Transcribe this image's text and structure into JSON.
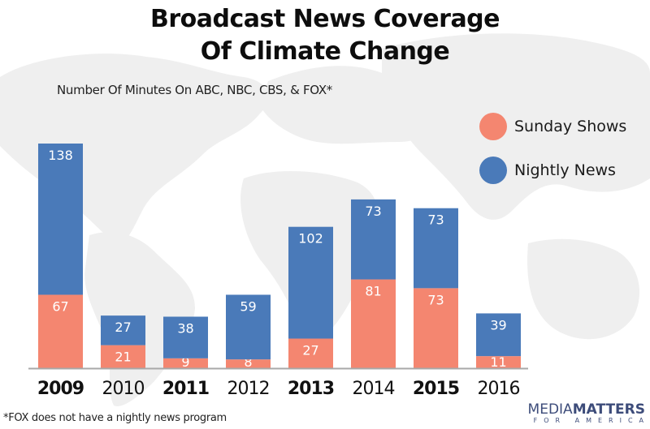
{
  "header": {
    "title_line1": "Broadcast News Coverage",
    "title_line2": "Of Climate Change",
    "subtitle": "Number Of Minutes On ABC, NBC, CBS, & FOX*"
  },
  "legend": [
    {
      "label": "Sunday Shows",
      "color": "#f48670"
    },
    {
      "label": "Nightly News",
      "color": "#4a7ab9"
    }
  ],
  "footnote": "*FOX does not have a nightly news program",
  "logo": {
    "part1": "MEDIA",
    "part2": "MATTERS",
    "part3": "FOR AMERICA"
  },
  "chart_data": {
    "type": "bar",
    "stacked": true,
    "title": "Broadcast News Coverage Of Climate Change",
    "subtitle": "Number Of Minutes On ABC, NBC, CBS, & FOX*",
    "categories": [
      "2009",
      "2010",
      "2011",
      "2012",
      "2013",
      "2014",
      "2015",
      "2016"
    ],
    "bold_categories": [
      "2009",
      "2011",
      "2013",
      "2015"
    ],
    "series": [
      {
        "name": "Sunday Shows",
        "color": "#f48670",
        "values": [
          67,
          21,
          9,
          8,
          27,
          81,
          73,
          11
        ]
      },
      {
        "name": "Nightly News",
        "color": "#4a7ab9",
        "values": [
          138,
          27,
          38,
          59,
          102,
          73,
          73,
          39
        ]
      }
    ],
    "xlabel": "",
    "ylabel": "",
    "ylim": [
      0,
      205
    ],
    "grid": false,
    "legend_position": "top-right"
  }
}
